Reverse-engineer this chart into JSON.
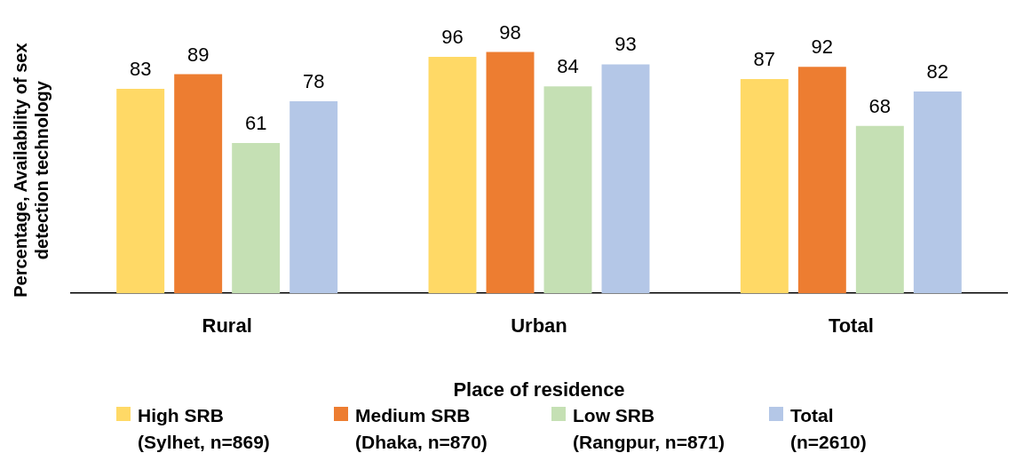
{
  "chart_data": {
    "type": "bar",
    "xlabel": "Place of residence",
    "ylabel": "Percentage, Availability of sex\ndetection technology",
    "categories": [
      "Rural",
      "Urban",
      "Total"
    ],
    "series": [
      {
        "name": "High SRB\n(Sylhet, n=869)",
        "color": "#ffd966",
        "values": [
          83,
          96,
          87
        ]
      },
      {
        "name": "Medium SRB\n(Dhaka, n=870)",
        "color": "#ed7d31",
        "values": [
          89,
          98,
          92
        ]
      },
      {
        "name": "Low SRB\n(Rangpur, n=871)",
        "color": "#c5e0b4",
        "values": [
          61,
          84,
          68
        ]
      },
      {
        "name": "Total\n(n=2610)",
        "color": "#b4c7e7",
        "values": [
          78,
          93,
          82
        ]
      }
    ],
    "data_labels": true,
    "grid": false,
    "legend": "bottom"
  }
}
